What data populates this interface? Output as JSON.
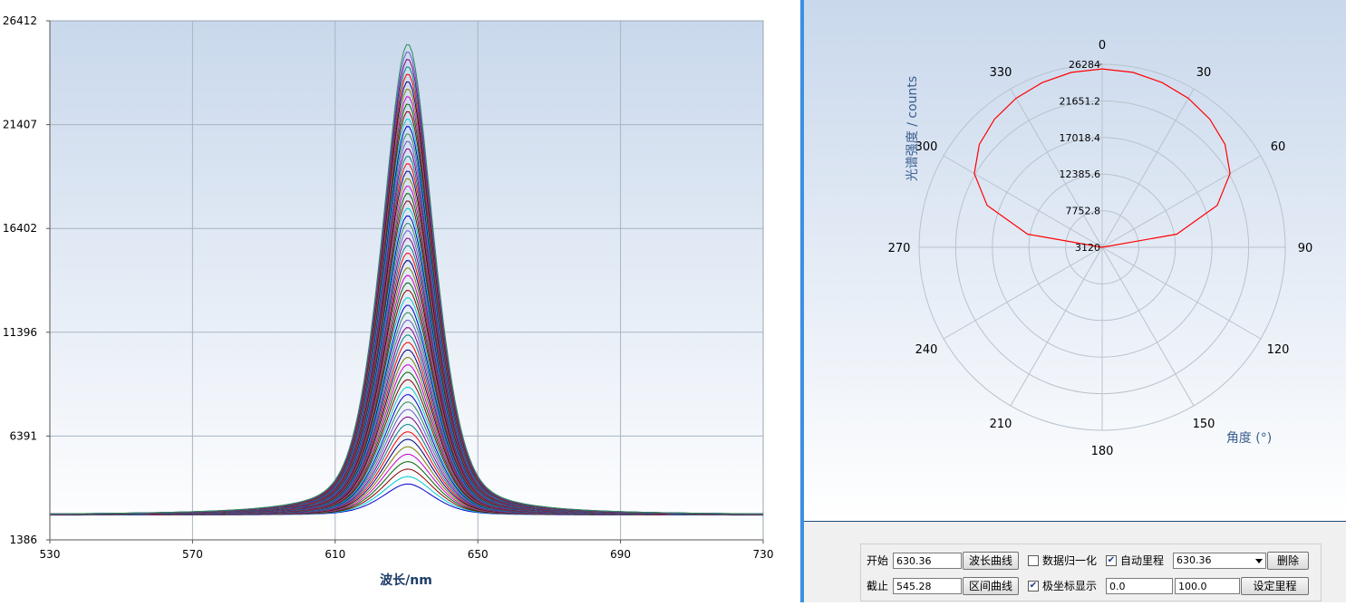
{
  "chart_data": [
    {
      "type": "line",
      "title": "",
      "xlabel": "波长/nm",
      "ylabel": "",
      "xlim": [
        530,
        730
      ],
      "ylim": [
        1386,
        26412
      ],
      "x_ticks": [
        "530",
        "570",
        "610",
        "650",
        "690",
        "730"
      ],
      "y_ticks": [
        "1386",
        "6391",
        "11396",
        "16402",
        "21407",
        "26412"
      ],
      "grid": true,
      "legend": "none",
      "series_count": 60,
      "peak_wavelength": 630.36,
      "baseline": 2580,
      "lowest_peak": 4080,
      "highest_peak": 25300,
      "series_colors": [
        "#0000cc",
        "#00cccc",
        "#8b0000",
        "#006400",
        "#cc00cc",
        "#808000",
        "#000080",
        "#ff0000",
        "#008080",
        "#800080",
        "#6a5acd",
        "#2e8b57"
      ]
    },
    {
      "type": "polar",
      "title": "",
      "radial_label": "光谱强度 / counts",
      "angular_label": "角度 (°)",
      "angle_ticks": [
        "0",
        "30",
        "60",
        "90",
        "120",
        "150",
        "180",
        "210",
        "240",
        "270",
        "300",
        "330"
      ],
      "radial_ticks": [
        "3120",
        "7752.8",
        "12385.6",
        "17018.4",
        "21651.2",
        "26284"
      ],
      "rlim": [
        3120,
        26284
      ],
      "theta_range": [
        -90,
        90
      ],
      "series_color": "#ff0000",
      "values": [
        {
          "theta": -90,
          "r": 3120
        },
        {
          "theta": -80,
          "r": 12700
        },
        {
          "theta": -70,
          "r": 18600
        },
        {
          "theta": -60,
          "r": 21800
        },
        {
          "theta": -50,
          "r": 23400
        },
        {
          "theta": -40,
          "r": 24300
        },
        {
          "theta": -30,
          "r": 24900
        },
        {
          "theta": -20,
          "r": 25300
        },
        {
          "theta": -10,
          "r": 25600
        },
        {
          "theta": 0,
          "r": 25700
        },
        {
          "theta": 10,
          "r": 25600
        },
        {
          "theta": 20,
          "r": 25300
        },
        {
          "theta": 30,
          "r": 24900
        },
        {
          "theta": 40,
          "r": 24300
        },
        {
          "theta": 50,
          "r": 23400
        },
        {
          "theta": 60,
          "r": 21800
        },
        {
          "theta": 70,
          "r": 18600
        },
        {
          "theta": 80,
          "r": 12700
        },
        {
          "theta": 90,
          "r": 3120
        }
      ]
    }
  ],
  "controls": {
    "start_label": "开始",
    "start_value": "630.36",
    "end_label": "截止",
    "end_value": "545.28",
    "wave_curve_button": "波长曲线",
    "range_curve_button": "区间曲线",
    "normalize_label": "数据归一化",
    "normalize_checked": false,
    "auto_range_label": "自动里程",
    "auto_range_checked": true,
    "polar_label": "极坐标显示",
    "polar_checked": true,
    "wavelength_select": "630.36",
    "delete_button": "删除",
    "range_min": "0.0",
    "range_max": "100.0",
    "set_range_button": "设定里程"
  }
}
